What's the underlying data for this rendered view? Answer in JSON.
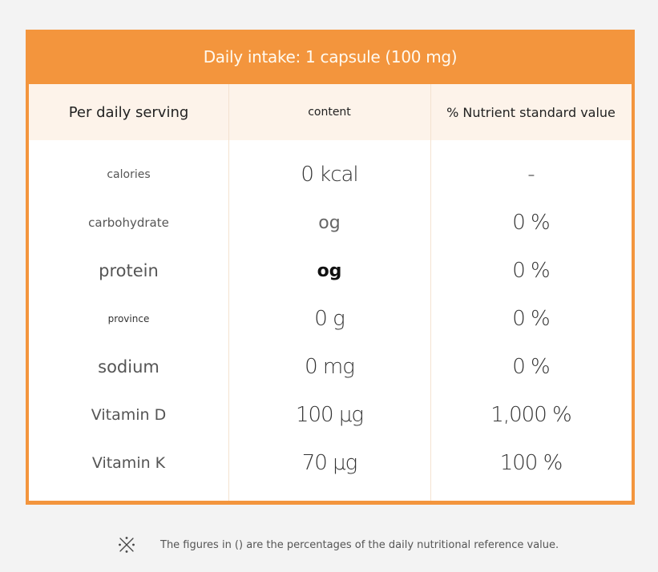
{
  "panel": {
    "title": "Daily intake: 1 capsule (100 mg)"
  },
  "table": {
    "headers": [
      "Per daily serving",
      "content",
      "% Nutrient standard value"
    ],
    "rows": [
      {
        "name": "calories",
        "content": "0 kcal",
        "percent": "-"
      },
      {
        "name": "carbohydrate",
        "content": "og",
        "percent": "0 %"
      },
      {
        "name": "protein",
        "content": "og",
        "percent": "0 %"
      },
      {
        "name": "province",
        "content": "0 g",
        "percent": "0 %"
      },
      {
        "name": "sodium",
        "content": "0 mg",
        "percent": "0 %"
      },
      {
        "name": "Vitamin D",
        "content": "100 μg",
        "percent": "1,000 %"
      },
      {
        "name": "Vitamin K",
        "content": "70 μg",
        "percent": "100 %"
      }
    ]
  },
  "footnote": {
    "icon": "reference-mark-icon",
    "text": "The figures in () are the percentages of the daily nutritional reference value."
  },
  "colors": {
    "accent": "#f3953d",
    "header_bg": "#fdf3ea"
  }
}
